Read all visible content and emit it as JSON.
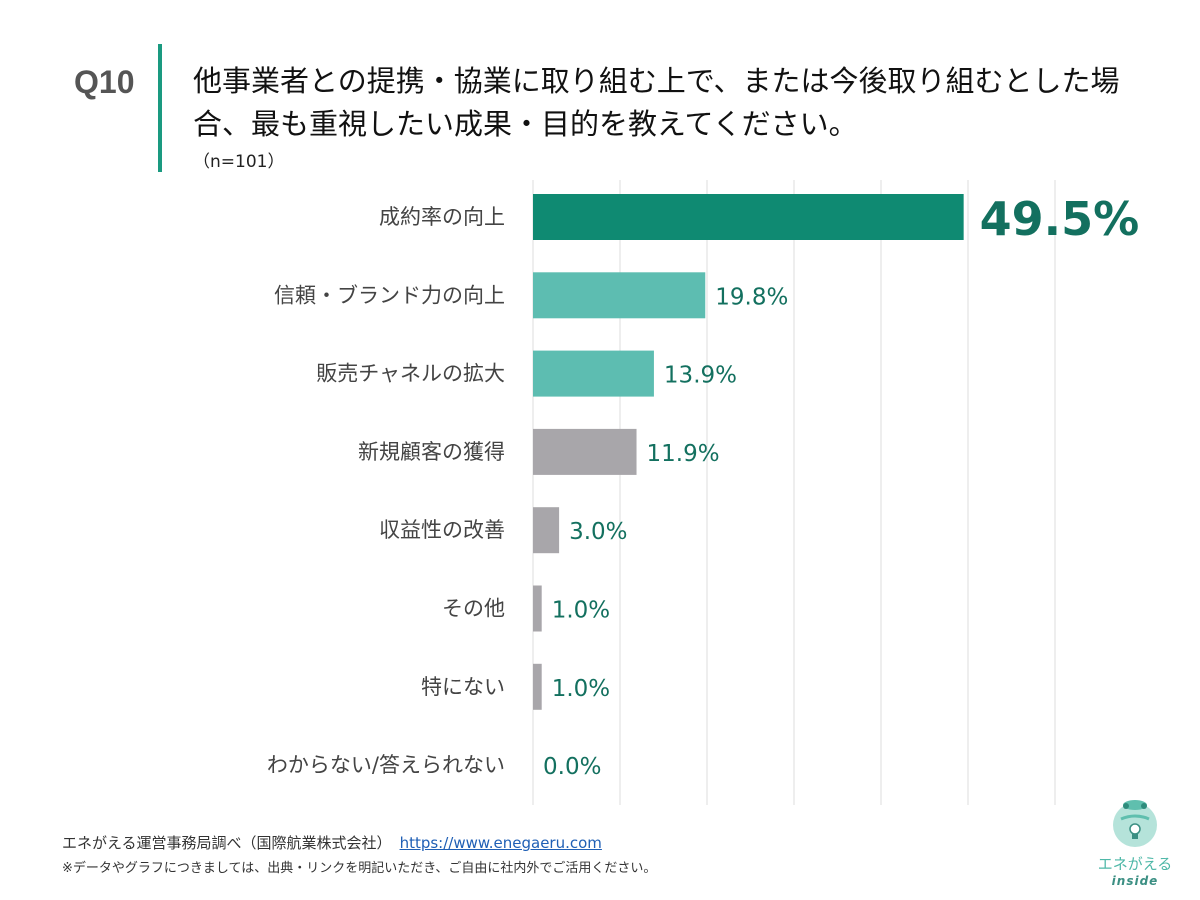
{
  "header": {
    "question_number": "Q10",
    "title": "他事業者との提携・協業に取り組む上で、または今後取り組むとした場合、最も重視したい成果・目的を教えてください。",
    "sample": "（n=101）"
  },
  "chart_data": {
    "type": "bar",
    "orientation": "horizontal",
    "categories": [
      "成約率の向上",
      "信頼・ブランド力の向上",
      "販売チャネルの拡大",
      "新規顧客の獲得",
      "収益性の改善",
      "その他",
      "特にない",
      "わからない/答えられない"
    ],
    "values": [
      49.5,
      19.8,
      13.9,
      11.9,
      3.0,
      1.0,
      1.0,
      0.0
    ],
    "data_labels": [
      "49.5%",
      "19.8%",
      "13.9%",
      "11.9%",
      "3.0%",
      "1.0%",
      "1.0%",
      "0.0%"
    ],
    "bar_colors": [
      "#0f8a72",
      "#5dbdb1",
      "#5dbdb1",
      "#a8a6aa",
      "#a8a6aa",
      "#a8a6aa",
      "#a8a6aa",
      "#a8a6aa"
    ],
    "label_color": "#13705f",
    "xlim": [
      0,
      60
    ],
    "grid": true,
    "tick_labels_shown": false
  },
  "footer": {
    "source": "エネがえる運営事務局調べ（国際航業株式会社）",
    "link": "https://www.enegaeru.com",
    "note": "※データやグラフにつきましては、出典・リンクを明記いただき、ご自由に社内外でご活用ください。"
  },
  "logo": {
    "text": "エネがえる",
    "sub": "inside"
  }
}
